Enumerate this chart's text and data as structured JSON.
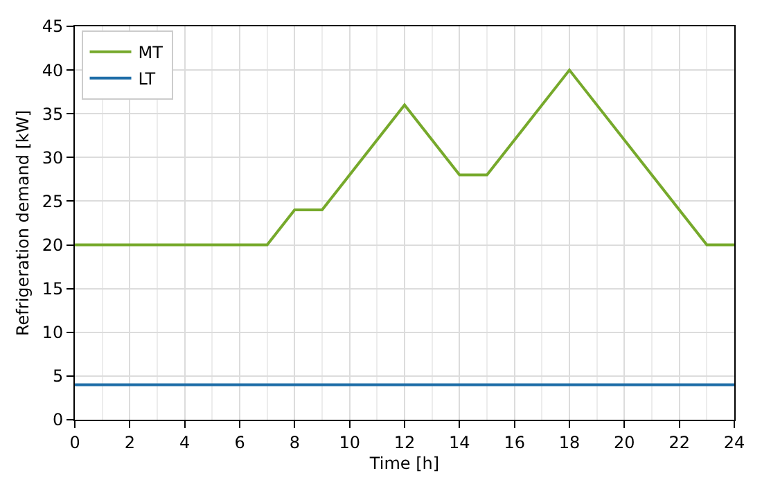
{
  "chart_data": {
    "type": "line",
    "xlabel": "Time [h]",
    "ylabel": "Refrigeration demand [kW]",
    "xlim": [
      0,
      24
    ],
    "xticks": [
      0,
      2,
      4,
      6,
      8,
      10,
      12,
      14,
      16,
      18,
      20,
      22,
      24
    ],
    "ylim": [
      0,
      45
    ],
    "yticks": [
      0,
      5,
      10,
      15,
      20,
      25,
      30,
      35,
      40,
      45
    ],
    "grid": true,
    "legend": "top left",
    "marker": "none",
    "line_style": "solid",
    "series": [
      {
        "name": "MT",
        "color": "#76a92b",
        "x": [
          0,
          7,
          8,
          9,
          12,
          14,
          15,
          18,
          23,
          24
        ],
        "values": [
          20,
          20,
          24,
          24,
          36,
          28,
          28,
          40,
          20,
          20
        ]
      },
      {
        "name": "LT",
        "color": "#1f6ea8",
        "x": [
          0,
          24
        ],
        "values": [
          4,
          4
        ]
      }
    ]
  }
}
